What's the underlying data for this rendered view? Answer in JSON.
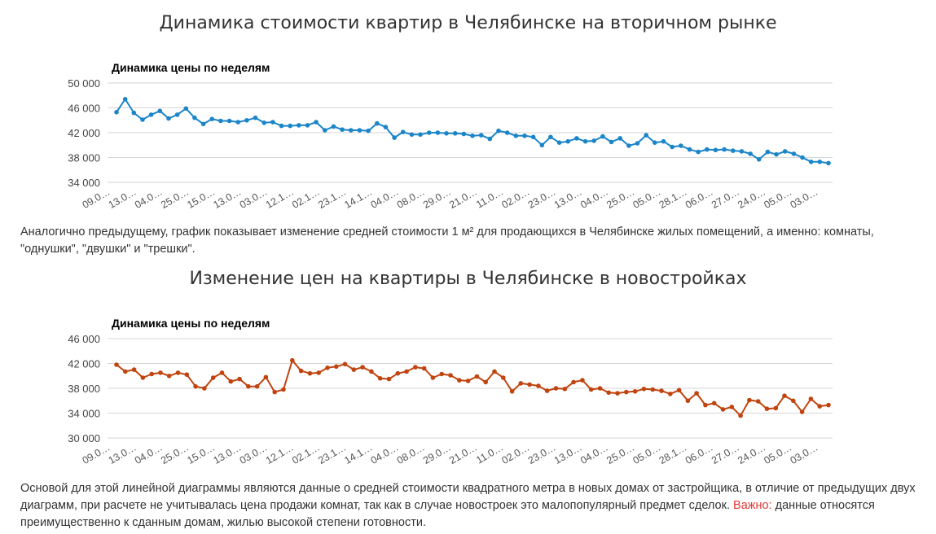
{
  "sections": [
    {
      "title": "Динамика стоимости квартир в Челябинске на вторичном рынке",
      "description": "Аналогично предыдущему, график показывает изменение средней стоимости 1 м² для продающихся в Челябинске жилых помещений, а именно: комнаты, \"однушки\", \"двушки\" и \"трешки\"."
    },
    {
      "title": "Изменение цен на квартиры в Челябинске в новостройках",
      "description_before": "Основой для этой линейной диаграммы являются данные о средней стоимости квадратного метра в новых домах от застройщика, в отличие от предыдущих двух диаграмм, при расчете не учитывалась цена продажи комнат, так как в случае новостроек это малопопулярный предмет сделок. ",
      "description_highlight": "Важно:",
      "description_after": " данные относятся преимущественно к сданным домам, жилью высокой степени готовности."
    }
  ],
  "chart_data": [
    {
      "type": "line",
      "title": "Динамика цены по неделям",
      "color": "#1a85c9",
      "ylim": [
        34000,
        50000
      ],
      "yticks": [
        34000,
        38000,
        42000,
        46000,
        50000
      ],
      "ytick_labels": [
        "34 000",
        "38 000",
        "42 000",
        "46 000",
        "50 000"
      ],
      "xtick_labels": [
        "09.0…",
        "13.0…",
        "04.0…",
        "25.0…",
        "15.0…",
        "13.0…",
        "03.0…",
        "12.1…",
        "02.1…",
        "23.1…",
        "14.1…",
        "04.0…",
        "08.0…",
        "29.0…",
        "21.0…",
        "11.0…",
        "02.0…",
        "23.0…",
        "13.0…",
        "04.0…",
        "25.0…",
        "05.0…",
        "28.1…",
        "06.0…",
        "27.0…",
        "24.0…",
        "05.0…",
        "03.0…"
      ],
      "grid": true,
      "values": [
        45300,
        47400,
        45200,
        44100,
        44900,
        45500,
        44300,
        44900,
        45900,
        44400,
        43400,
        44200,
        43900,
        43900,
        43700,
        44000,
        44400,
        43600,
        43700,
        43100,
        43100,
        43200,
        43200,
        43700,
        42400,
        43000,
        42500,
        42400,
        42400,
        42300,
        43500,
        42900,
        41200,
        42100,
        41700,
        41700,
        42000,
        42000,
        41900,
        41900,
        41800,
        41500,
        41600,
        41000,
        42300,
        42000,
        41500,
        41500,
        41300,
        40000,
        41300,
        40400,
        40600,
        41100,
        40600,
        40700,
        41400,
        40500,
        41100,
        39900,
        40300,
        41600,
        40400,
        40600,
        39700,
        39900,
        39300,
        38900,
        39300,
        39200,
        39300,
        39100,
        39000,
        38600,
        37700,
        38900,
        38500,
        39000,
        38600,
        38000,
        37300,
        37300,
        37100
      ]
    },
    {
      "type": "line",
      "title": "Динамика цены по неделям",
      "color": "#c0440f",
      "ylim": [
        30000,
        46000
      ],
      "yticks": [
        30000,
        34000,
        38000,
        42000,
        46000
      ],
      "ytick_labels": [
        "30 000",
        "34 000",
        "38 000",
        "42 000",
        "46 000"
      ],
      "xtick_labels": [
        "09.0…",
        "13.0…",
        "04.0…",
        "25.0…",
        "15.0…",
        "13.0…",
        "03.0…",
        "12.1…",
        "02.1…",
        "23.1…",
        "14.1…",
        "04.0…",
        "08.0…",
        "29.0…",
        "21.0…",
        "11.0…",
        "02.0…",
        "23.0…",
        "13.0…",
        "04.0…",
        "25.0…",
        "05.0…",
        "28.1…",
        "06.0…",
        "27.0…",
        "24.0…",
        "05.0…",
        "03.0…"
      ],
      "grid": true,
      "values": [
        41800,
        40700,
        41000,
        39700,
        40300,
        40500,
        40000,
        40500,
        40200,
        38300,
        38000,
        39700,
        40500,
        39100,
        39500,
        38300,
        38300,
        39800,
        37400,
        37800,
        42500,
        40800,
        40400,
        40500,
        41300,
        41500,
        41900,
        41000,
        41400,
        40700,
        39600,
        39500,
        40400,
        40700,
        41400,
        41200,
        39700,
        40300,
        40100,
        39300,
        39200,
        39900,
        39000,
        40700,
        39700,
        37500,
        38800,
        38600,
        38400,
        37600,
        38000,
        37900,
        39000,
        39300,
        37800,
        38000,
        37300,
        37200,
        37400,
        37500,
        37900,
        37800,
        37600,
        37100,
        37700,
        36000,
        37200,
        35300,
        35600,
        34600,
        35000,
        33600,
        36100,
        35900,
        34700,
        34800,
        36800,
        36000,
        34200,
        36300,
        35100,
        35300
      ]
    }
  ]
}
